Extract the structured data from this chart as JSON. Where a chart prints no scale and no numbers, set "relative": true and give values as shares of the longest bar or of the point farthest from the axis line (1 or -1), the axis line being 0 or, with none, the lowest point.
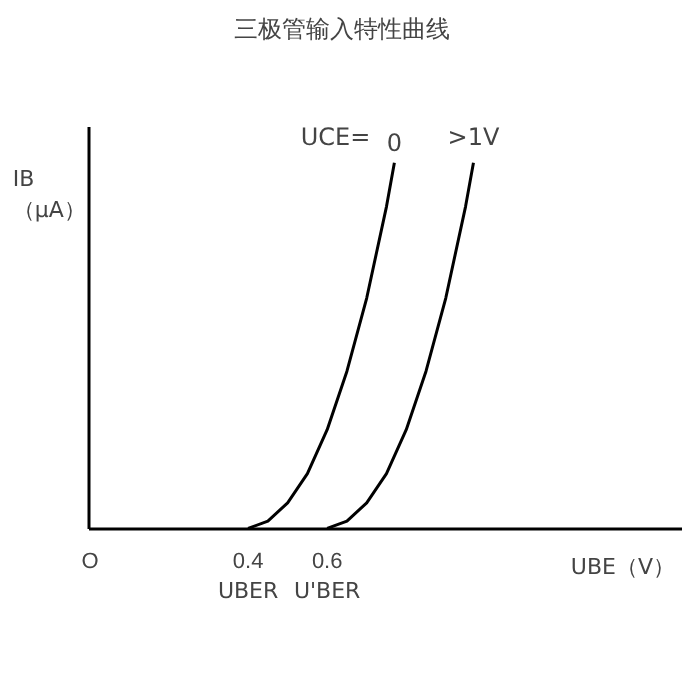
{
  "chart_data": {
    "type": "line",
    "title": "三极管输入特性曲线",
    "xlabel": "UBE（V）",
    "ylabel": "IB\n（μA）",
    "legend_title": "UCE=",
    "relative": true,
    "xlim": [
      0,
      1.5
    ],
    "xticks": [
      {
        "value": 0,
        "label": "O"
      },
      0.4,
      0.6
    ],
    "grid": false,
    "legend": false,
    "tick_labels": "x",
    "series": [
      {
        "name": "0",
        "color": "#000000",
        "x": [
          0.4,
          0.45,
          0.5,
          0.55,
          0.6,
          0.65,
          0.7,
          0.75,
          0.77
        ],
        "values": [
          0,
          0.02,
          0.07,
          0.15,
          0.27,
          0.43,
          0.63,
          0.88,
          1
        ]
      },
      {
        "name": ">1V",
        "color": "#000000",
        "x": [
          0.6,
          0.65,
          0.7,
          0.75,
          0.8,
          0.85,
          0.9,
          0.95,
          0.97
        ],
        "values": [
          0,
          0.02,
          0.07,
          0.15,
          0.27,
          0.43,
          0.63,
          0.88,
          1
        ]
      }
    ],
    "annotations": [
      {
        "text": "UBER",
        "x": 0.4,
        "y": 0
      },
      {
        "text": "U'BER",
        "x": 0.6,
        "y": 0
      }
    ]
  }
}
